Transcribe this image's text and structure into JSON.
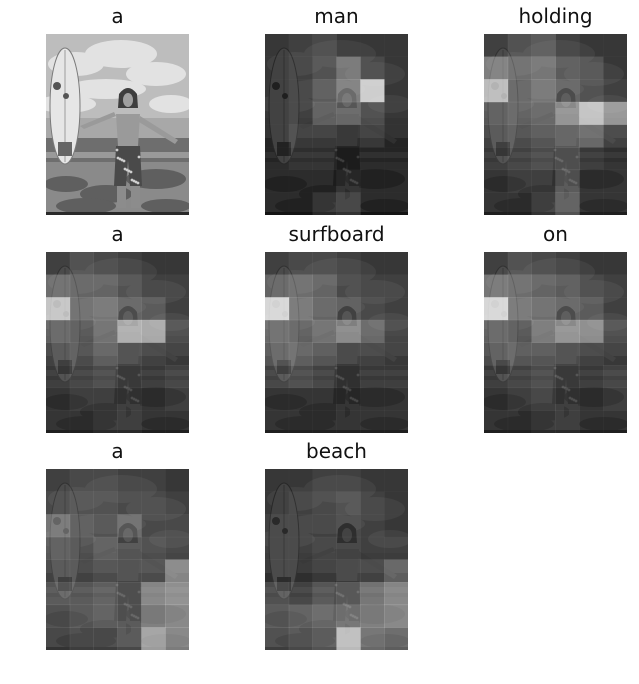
{
  "figure": {
    "panels": [
      {
        "word": "a",
        "mode": "original"
      },
      {
        "word": "man",
        "mode": "attention",
        "weights": [
          [
            0.05,
            0.1,
            0.15,
            0.05,
            0.05,
            0.05
          ],
          [
            0.05,
            0.1,
            0.2,
            0.4,
            0.15,
            0.05
          ],
          [
            0.05,
            0.1,
            0.25,
            0.45,
            0.9,
            0.05
          ],
          [
            0.05,
            0.1,
            0.3,
            0.35,
            0.2,
            0.05
          ],
          [
            0.05,
            0.15,
            0.15,
            0.1,
            0.15,
            0.05
          ],
          [
            0.05,
            0.1,
            0.1,
            0.05,
            0.05,
            0.05
          ],
          [
            0.05,
            0.05,
            0.05,
            0.1,
            0.05,
            0.05
          ],
          [
            0.05,
            0.05,
            0.15,
            0.2,
            0.05,
            0.05
          ]
        ]
      },
      {
        "word": "holding",
        "mode": "attention",
        "weights": [
          [
            0.1,
            0.2,
            0.25,
            0.1,
            0.05,
            0.05
          ],
          [
            0.45,
            0.35,
            0.4,
            0.25,
            0.2,
            0.05
          ],
          [
            0.8,
            0.3,
            0.4,
            0.3,
            0.2,
            0.1
          ],
          [
            0.25,
            0.3,
            0.35,
            0.6,
            0.85,
            0.6
          ],
          [
            0.2,
            0.25,
            0.3,
            0.35,
            0.4,
            0.2
          ],
          [
            0.15,
            0.2,
            0.25,
            0.3,
            0.15,
            0.1
          ],
          [
            0.1,
            0.15,
            0.15,
            0.3,
            0.1,
            0.1
          ],
          [
            0.1,
            0.1,
            0.2,
            0.35,
            0.1,
            0.1
          ]
        ]
      },
      {
        "word": "a",
        "mode": "attention",
        "weights": [
          [
            0.1,
            0.2,
            0.15,
            0.1,
            0.05,
            0.05
          ],
          [
            0.35,
            0.3,
            0.3,
            0.2,
            0.1,
            0.1
          ],
          [
            0.85,
            0.35,
            0.4,
            0.3,
            0.25,
            0.1
          ],
          [
            0.3,
            0.25,
            0.4,
            0.75,
            0.7,
            0.2
          ],
          [
            0.2,
            0.25,
            0.35,
            0.25,
            0.2,
            0.15
          ],
          [
            0.15,
            0.2,
            0.25,
            0.2,
            0.15,
            0.2
          ],
          [
            0.1,
            0.15,
            0.15,
            0.15,
            0.1,
            0.15
          ],
          [
            0.1,
            0.1,
            0.15,
            0.15,
            0.1,
            0.1
          ]
        ]
      },
      {
        "word": "surfboard",
        "mode": "attention",
        "weights": [
          [
            0.1,
            0.15,
            0.15,
            0.1,
            0.05,
            0.05
          ],
          [
            0.3,
            0.35,
            0.3,
            0.15,
            0.1,
            0.1
          ],
          [
            0.95,
            0.4,
            0.3,
            0.25,
            0.15,
            0.1
          ],
          [
            0.35,
            0.3,
            0.4,
            0.55,
            0.35,
            0.15
          ],
          [
            0.3,
            0.35,
            0.3,
            0.2,
            0.2,
            0.15
          ],
          [
            0.2,
            0.25,
            0.2,
            0.15,
            0.15,
            0.15
          ],
          [
            0.1,
            0.1,
            0.1,
            0.1,
            0.1,
            0.1
          ],
          [
            0.1,
            0.1,
            0.1,
            0.1,
            0.1,
            0.1
          ]
        ]
      },
      {
        "word": "on",
        "mode": "attention",
        "weights": [
          [
            0.1,
            0.2,
            0.15,
            0.1,
            0.05,
            0.05
          ],
          [
            0.4,
            0.35,
            0.3,
            0.25,
            0.15,
            0.1
          ],
          [
            0.95,
            0.4,
            0.35,
            0.3,
            0.25,
            0.1
          ],
          [
            0.3,
            0.25,
            0.45,
            0.6,
            0.55,
            0.2
          ],
          [
            0.25,
            0.3,
            0.3,
            0.25,
            0.2,
            0.15
          ],
          [
            0.15,
            0.2,
            0.25,
            0.2,
            0.15,
            0.2
          ],
          [
            0.1,
            0.15,
            0.2,
            0.15,
            0.1,
            0.15
          ],
          [
            0.1,
            0.1,
            0.15,
            0.15,
            0.1,
            0.1
          ]
        ]
      },
      {
        "word": "a",
        "mode": "attention",
        "weights": [
          [
            0.1,
            0.15,
            0.15,
            0.1,
            0.1,
            0.05
          ],
          [
            0.15,
            0.2,
            0.2,
            0.15,
            0.15,
            0.1
          ],
          [
            0.4,
            0.25,
            0.2,
            0.35,
            0.15,
            0.15
          ],
          [
            0.25,
            0.2,
            0.3,
            0.25,
            0.2,
            0.15
          ],
          [
            0.2,
            0.2,
            0.25,
            0.25,
            0.25,
            0.55
          ],
          [
            0.3,
            0.3,
            0.35,
            0.3,
            0.55,
            0.6
          ],
          [
            0.25,
            0.3,
            0.35,
            0.3,
            0.5,
            0.55
          ],
          [
            0.2,
            0.25,
            0.25,
            0.3,
            0.7,
            0.55
          ]
        ]
      },
      {
        "word": "beach",
        "mode": "attention",
        "weights": [
          [
            0.05,
            0.05,
            0.1,
            0.1,
            0.05,
            0.05
          ],
          [
            0.05,
            0.1,
            0.15,
            0.2,
            0.1,
            0.05
          ],
          [
            0.1,
            0.1,
            0.1,
            0.15,
            0.1,
            0.05
          ],
          [
            0.1,
            0.1,
            0.15,
            0.15,
            0.1,
            0.1
          ],
          [
            0.1,
            0.1,
            0.15,
            0.2,
            0.2,
            0.35
          ],
          [
            0.25,
            0.2,
            0.3,
            0.35,
            0.45,
            0.55
          ],
          [
            0.3,
            0.35,
            0.4,
            0.45,
            0.5,
            0.55
          ],
          [
            0.25,
            0.3,
            0.35,
            0.85,
            0.45,
            0.4
          ]
        ]
      }
    ]
  }
}
